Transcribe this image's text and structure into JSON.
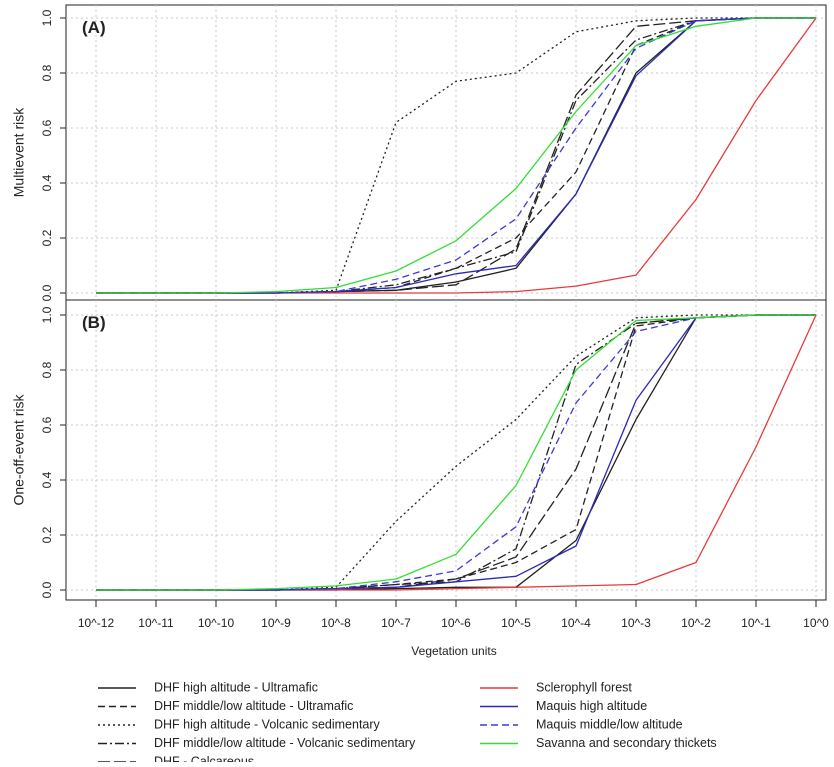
{
  "chart_data": {
    "type": "line",
    "xlabel": "Vegetation units",
    "x": [
      "10^-12",
      "10^-11",
      "10^-10",
      "10^-9",
      "10^-8",
      "10^-7",
      "10^-6",
      "10^-5",
      "10^-4",
      "10^-3",
      "10^-2",
      "10^-1",
      "10^0"
    ],
    "grid": true,
    "series_styles": [
      {
        "name": "DHF high altitude - Ultramafic",
        "color": "#222222",
        "dash": "solid"
      },
      {
        "name": "DHF middle/low altitude - Ultramafic",
        "color": "#222222",
        "dash": "dashed"
      },
      {
        "name": "DHF high altitude - Volcanic sedimentary",
        "color": "#222222",
        "dash": "dotted"
      },
      {
        "name": "DHF middle/low altitude - Volcanic sedimentary",
        "color": "#222222",
        "dash": "dotdash"
      },
      {
        "name": "DHF - Calcareous",
        "color": "#222222",
        "dash": "longdash"
      },
      {
        "name": "Sclerophyll forest",
        "color": "#e83a3a",
        "dash": "solid"
      },
      {
        "name": "Maquis high altitude",
        "color": "#2a2ab8",
        "dash": "solid"
      },
      {
        "name": "Maquis middle/low altitude",
        "color": "#3a3ad8",
        "dash": "dashed"
      },
      {
        "name": "Savanna and secondary thickets",
        "color": "#33dd33",
        "dash": "solid"
      }
    ],
    "legend": {
      "placement": "bottom",
      "left": [
        "DHF high altitude - Ultramafic",
        "DHF middle/low altitude - Ultramafic",
        "DHF high altitude - Volcanic sedimentary",
        "DHF middle/low altitude - Volcanic sedimentary",
        "DHF - Calcareous"
      ],
      "right": [
        "Sclerophyll forest",
        "Maquis high altitude",
        "Maquis middle/low altitude",
        "Savanna and secondary thickets"
      ]
    },
    "panels": [
      {
        "label": "(A)",
        "ylabel": "Multievent risk",
        "ylim": [
          0,
          1
        ],
        "yticks": [
          "0.0",
          "0.2",
          "0.4",
          "0.6",
          "0.8",
          "1.0"
        ],
        "series": [
          {
            "name": "DHF high altitude - Ultramafic",
            "values": [
              0,
              0,
              0,
              0,
              0.005,
              0.01,
              0.04,
              0.09,
              0.36,
              0.8,
              0.99,
              1,
              1
            ]
          },
          {
            "name": "DHF middle/low altitude - Ultramafic",
            "values": [
              0,
              0,
              0,
              0,
              0.005,
              0.02,
              0.09,
              0.2,
              0.44,
              0.9,
              0.99,
              1,
              1
            ]
          },
          {
            "name": "DHF high altitude - Volcanic sedimentary",
            "values": [
              0,
              0,
              0,
              0,
              0.01,
              0.62,
              0.77,
              0.8,
              0.95,
              0.99,
              1,
              1,
              1
            ]
          },
          {
            "name": "DHF middle/low altitude - Volcanic sedimentary",
            "values": [
              0,
              0,
              0,
              0,
              0.005,
              0.03,
              0.09,
              0.15,
              0.7,
              0.92,
              0.99,
              1,
              1
            ]
          },
          {
            "name": "DHF - Calcareous",
            "values": [
              0,
              0,
              0,
              0,
              0.005,
              0.01,
              0.03,
              0.16,
              0.72,
              0.97,
              0.99,
              1,
              1
            ]
          },
          {
            "name": "Sclerophyll forest",
            "values": [
              0,
              0,
              0,
              0,
              0,
              0,
              0,
              0.005,
              0.025,
              0.065,
              0.34,
              0.7,
              1
            ]
          },
          {
            "name": "Maquis high altitude",
            "values": [
              0,
              0,
              0,
              0,
              0.005,
              0.02,
              0.07,
              0.1,
              0.36,
              0.79,
              0.99,
              1,
              1
            ]
          },
          {
            "name": "Maquis middle/low altitude",
            "values": [
              0,
              0,
              0,
              0,
              0.005,
              0.05,
              0.12,
              0.27,
              0.6,
              0.89,
              0.99,
              1,
              1
            ]
          },
          {
            "name": "Savanna and secondary thickets",
            "values": [
              0,
              0,
              0,
              0.005,
              0.02,
              0.08,
              0.19,
              0.38,
              0.66,
              0.9,
              0.97,
              1,
              1
            ]
          }
        ]
      },
      {
        "label": "(B)",
        "ylabel": "One-off-event risk",
        "ylim": [
          0,
          1
        ],
        "yticks": [
          "0.0",
          "0.2",
          "0.4",
          "0.6",
          "0.8",
          "1.0"
        ],
        "series": [
          {
            "name": "DHF high altitude - Ultramafic",
            "values": [
              0,
              0,
              0,
              0,
              0,
              0.005,
              0.01,
              0.01,
              0.18,
              0.62,
              0.99,
              1,
              1
            ]
          },
          {
            "name": "DHF middle/low altitude - Ultramafic",
            "values": [
              0,
              0,
              0,
              0,
              0.005,
              0.02,
              0.04,
              0.1,
              0.22,
              0.96,
              0.99,
              1,
              1
            ]
          },
          {
            "name": "DHF high altitude - Volcanic sedimentary",
            "values": [
              0,
              0,
              0,
              0,
              0.01,
              0.25,
              0.45,
              0.62,
              0.85,
              0.99,
              1,
              1,
              1
            ]
          },
          {
            "name": "DHF middle/low altitude - Volcanic sedimentary",
            "values": [
              0,
              0,
              0,
              0,
              0.005,
              0.02,
              0.03,
              0.15,
              0.82,
              0.97,
              0.99,
              1,
              1
            ]
          },
          {
            "name": "DHF - Calcareous",
            "values": [
              0,
              0,
              0,
              0,
              0.005,
              0.01,
              0.04,
              0.12,
              0.44,
              0.97,
              0.99,
              1,
              1
            ]
          },
          {
            "name": "Sclerophyll forest",
            "values": [
              0,
              0,
              0,
              0,
              0,
              0,
              0.005,
              0.01,
              0.015,
              0.02,
              0.1,
              0.52,
              1
            ]
          },
          {
            "name": "Maquis high altitude",
            "values": [
              0,
              0,
              0,
              0,
              0.005,
              0.01,
              0.03,
              0.05,
              0.16,
              0.69,
              0.99,
              1,
              1
            ]
          },
          {
            "name": "Maquis middle/low altitude",
            "values": [
              0,
              0,
              0,
              0,
              0.005,
              0.03,
              0.07,
              0.23,
              0.68,
              0.94,
              0.99,
              1,
              1
            ]
          },
          {
            "name": "Savanna and secondary thickets",
            "values": [
              0,
              0,
              0,
              0.005,
              0.015,
              0.04,
              0.13,
              0.38,
              0.8,
              0.98,
              0.99,
              1,
              1
            ]
          }
        ]
      }
    ]
  }
}
